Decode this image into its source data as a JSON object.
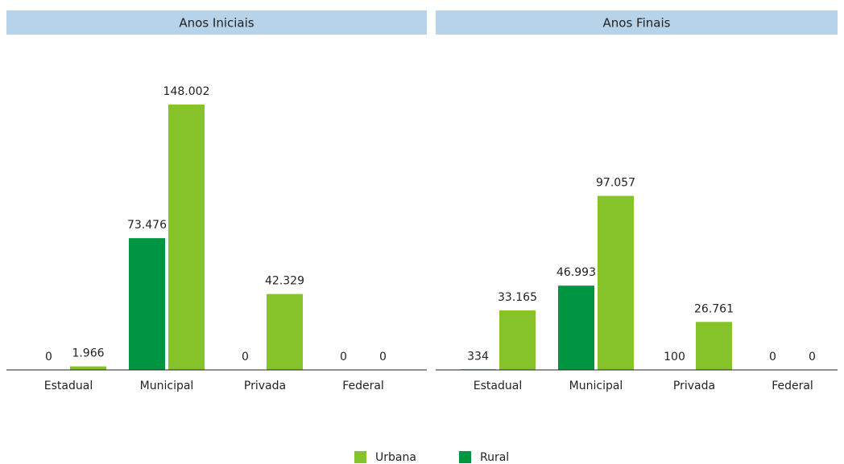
{
  "chart_data": [
    {
      "type": "bar",
      "title": "Anos Iniciais",
      "categories": [
        "Estadual",
        "Municipal",
        "Privada",
        "Federal"
      ],
      "series": [
        {
          "name": "Urbana",
          "color": "#86c22a",
          "values": [
            1966,
            148002,
            42329,
            0
          ],
          "value_labels": [
            "1.966",
            "148.002",
            "42.329",
            "0"
          ]
        },
        {
          "name": "Rural",
          "color": "#009540",
          "values": [
            0,
            73476,
            0,
            0
          ],
          "value_labels": [
            "0",
            "73.476",
            "0",
            "0"
          ]
        }
      ]
    },
    {
      "type": "bar",
      "title": "Anos Finais",
      "categories": [
        "Estadual",
        "Municipal",
        "Privada",
        "Federal"
      ],
      "series": [
        {
          "name": "Urbana",
          "color": "#86c22a",
          "values": [
            33165,
            97057,
            26761,
            0
          ],
          "value_labels": [
            "33.165",
            "97.057",
            "26.761",
            "0"
          ]
        },
        {
          "name": "Rural",
          "color": "#009540",
          "values": [
            334,
            46993,
            100,
            0
          ],
          "value_labels": [
            "334",
            "46.993",
            "100",
            "0"
          ]
        }
      ]
    }
  ]
}
